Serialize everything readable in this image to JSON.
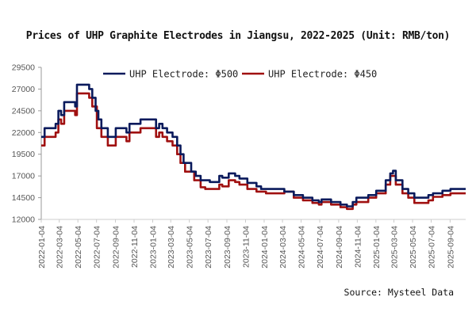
{
  "chart_data": {
    "type": "line",
    "title": "Prices of UHP Graphite Electrodes in Jiangsu, 2022-2025 (Unit: RMB/ton)",
    "source": "Source: Mysteel Data",
    "xlabel": "",
    "ylabel": "",
    "ylim": [
      12000,
      29500
    ],
    "yticks": [
      "12000",
      "14500",
      "17000",
      "19500",
      "22000",
      "24500",
      "27000",
      "29500"
    ],
    "xlim": [
      "2022-01-04",
      "2025-10-25"
    ],
    "xticks": [
      "2022-01-04",
      "2022-03-04",
      "2022-05-04",
      "2022-07-04",
      "2022-09-04",
      "2022-11-04",
      "2023-01-04",
      "2023-03-04",
      "2023-05-04",
      "2023-07-04",
      "2023-09-04",
      "2023-11-04",
      "2024-01-04",
      "2024-03-04",
      "2024-05-04",
      "2024-07-04",
      "2024-09-04",
      "2024-11-04",
      "2025-01-04",
      "2025-03-04",
      "2025-05-04",
      "2025-07-04",
      "2025-09-04"
    ],
    "grid": false,
    "legend_position": "top",
    "series": [
      {
        "name": "UHP Electrode: Φ500",
        "color": "#0a1a5c",
        "points": [
          [
            "2022-01-04",
            21500
          ],
          [
            "2022-01-15",
            22500
          ],
          [
            "2022-02-20",
            23000
          ],
          [
            "2022-03-01",
            24500
          ],
          [
            "2022-03-10",
            24000
          ],
          [
            "2022-03-20",
            25500
          ],
          [
            "2022-04-25",
            25000
          ],
          [
            "2022-05-01",
            27500
          ],
          [
            "2022-06-10",
            27000
          ],
          [
            "2022-06-20",
            26000
          ],
          [
            "2022-07-01",
            24500
          ],
          [
            "2022-07-10",
            23500
          ],
          [
            "2022-07-20",
            22500
          ],
          [
            "2022-08-10",
            21500
          ],
          [
            "2022-09-05",
            22500
          ],
          [
            "2022-10-10",
            22000
          ],
          [
            "2022-10-20",
            23000
          ],
          [
            "2022-11-25",
            23500
          ],
          [
            "2023-01-15",
            22500
          ],
          [
            "2023-01-25",
            23000
          ],
          [
            "2023-02-05",
            22500
          ],
          [
            "2023-02-20",
            22000
          ],
          [
            "2023-03-10",
            21500
          ],
          [
            "2023-03-25",
            20500
          ],
          [
            "2023-04-05",
            19500
          ],
          [
            "2023-04-15",
            18500
          ],
          [
            "2023-05-10",
            17500
          ],
          [
            "2023-05-25",
            17000
          ],
          [
            "2023-06-10",
            16500
          ],
          [
            "2023-07-10",
            16300
          ],
          [
            "2023-08-10",
            17000
          ],
          [
            "2023-08-20",
            16800
          ],
          [
            "2023-09-10",
            17300
          ],
          [
            "2023-10-01",
            17000
          ],
          [
            "2023-10-15",
            16700
          ],
          [
            "2023-11-10",
            16200
          ],
          [
            "2023-12-10",
            15800
          ],
          [
            "2023-12-25",
            15500
          ],
          [
            "2024-03-10",
            15200
          ],
          [
            "2024-04-10",
            14800
          ],
          [
            "2024-05-10",
            14500
          ],
          [
            "2024-06-10",
            14200
          ],
          [
            "2024-07-01",
            14000
          ],
          [
            "2024-07-10",
            14300
          ],
          [
            "2024-08-10",
            14000
          ],
          [
            "2024-09-10",
            13700
          ],
          [
            "2024-10-01",
            13500
          ],
          [
            "2024-10-20",
            14000
          ],
          [
            "2024-11-01",
            14500
          ],
          [
            "2024-12-10",
            14800
          ],
          [
            "2025-01-05",
            15300
          ],
          [
            "2025-02-05",
            16500
          ],
          [
            "2025-02-20",
            17300
          ],
          [
            "2025-03-01",
            17600
          ],
          [
            "2025-03-10",
            16500
          ],
          [
            "2025-04-01",
            15500
          ],
          [
            "2025-04-20",
            15000
          ],
          [
            "2025-05-10",
            14500
          ],
          [
            "2025-06-25",
            14800
          ],
          [
            "2025-07-10",
            15000
          ],
          [
            "2025-08-10",
            15300
          ],
          [
            "2025-09-05",
            15500
          ],
          [
            "2025-10-25",
            15500
          ]
        ]
      },
      {
        "name": "UHP Electrode: Φ450",
        "color": "#a01010",
        "points": [
          [
            "2022-01-04",
            20500
          ],
          [
            "2022-01-15",
            21500
          ],
          [
            "2022-02-20",
            22000
          ],
          [
            "2022-03-01",
            23500
          ],
          [
            "2022-03-10",
            23000
          ],
          [
            "2022-03-20",
            24500
          ],
          [
            "2022-04-25",
            24000
          ],
          [
            "2022-05-01",
            26500
          ],
          [
            "2022-06-10",
            26000
          ],
          [
            "2022-06-20",
            25000
          ],
          [
            "2022-07-05",
            22500
          ],
          [
            "2022-07-20",
            21500
          ],
          [
            "2022-08-10",
            20500
          ],
          [
            "2022-09-05",
            21500
          ],
          [
            "2022-10-10",
            21000
          ],
          [
            "2022-10-20",
            22000
          ],
          [
            "2022-11-25",
            22500
          ],
          [
            "2023-01-15",
            21500
          ],
          [
            "2023-01-25",
            22000
          ],
          [
            "2023-02-05",
            21500
          ],
          [
            "2023-02-20",
            21000
          ],
          [
            "2023-03-10",
            20500
          ],
          [
            "2023-03-25",
            19500
          ],
          [
            "2023-04-05",
            18500
          ],
          [
            "2023-04-20",
            17500
          ],
          [
            "2023-05-20",
            16500
          ],
          [
            "2023-06-10",
            15700
          ],
          [
            "2023-06-25",
            15500
          ],
          [
            "2023-08-10",
            16000
          ],
          [
            "2023-08-20",
            15800
          ],
          [
            "2023-09-10",
            16500
          ],
          [
            "2023-10-01",
            16300
          ],
          [
            "2023-10-15",
            16000
          ],
          [
            "2023-11-10",
            15500
          ],
          [
            "2023-12-10",
            15200
          ],
          [
            "2024-01-10",
            15000
          ],
          [
            "2024-03-10",
            15200
          ],
          [
            "2024-04-10",
            14500
          ],
          [
            "2024-05-10",
            14200
          ],
          [
            "2024-06-10",
            13900
          ],
          [
            "2024-07-01",
            13700
          ],
          [
            "2024-07-10",
            14000
          ],
          [
            "2024-08-10",
            13700
          ],
          [
            "2024-09-10",
            13400
          ],
          [
            "2024-10-01",
            13200
          ],
          [
            "2024-10-20",
            13700
          ],
          [
            "2024-11-01",
            14000
          ],
          [
            "2024-12-10",
            14500
          ],
          [
            "2025-01-05",
            15000
          ],
          [
            "2025-02-05",
            16000
          ],
          [
            "2025-02-20",
            17000
          ],
          [
            "2025-03-10",
            16000
          ],
          [
            "2025-04-01",
            15000
          ],
          [
            "2025-04-20",
            14500
          ],
          [
            "2025-05-10",
            13900
          ],
          [
            "2025-06-25",
            14200
          ],
          [
            "2025-07-10",
            14600
          ],
          [
            "2025-08-10",
            14800
          ],
          [
            "2025-09-05",
            15000
          ],
          [
            "2025-10-25",
            15000
          ]
        ]
      }
    ]
  }
}
